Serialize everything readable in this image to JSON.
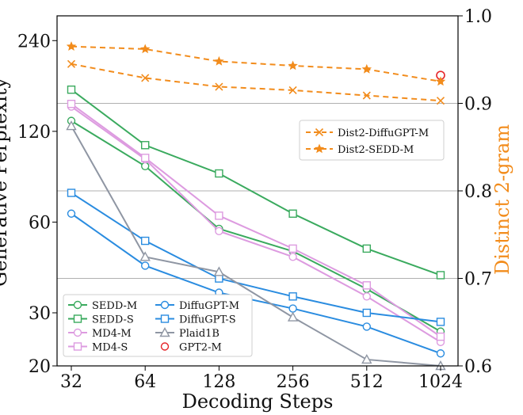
{
  "chart_data": {
    "type": "line",
    "x": [
      32,
      64,
      128,
      256,
      512,
      1024
    ],
    "xlabel": "Decoding Steps",
    "x_tick_labels": [
      "32",
      "64",
      "128",
      "256",
      "512",
      "1024"
    ],
    "x_scale": "log2",
    "left_axis": {
      "label": "Generative Perplexity",
      "scale": "log",
      "ylim": [
        20,
        290
      ],
      "ticks": [
        20,
        30,
        60,
        120,
        240
      ],
      "tick_labels": [
        "20",
        "30",
        "60",
        "120",
        "240"
      ]
    },
    "right_axis": {
      "label": "Distinct 2-gram",
      "scale": "linear",
      "ylim": [
        0.6,
        1.0
      ],
      "ticks": [
        0.6,
        0.7,
        0.8,
        0.9,
        1.0
      ],
      "tick_labels": [
        "0.6",
        "0.7",
        "0.8",
        "0.9",
        "1.0"
      ]
    },
    "horizontal_gridlines_right_axis": [
      0.7,
      0.8,
      0.9
    ],
    "series": [
      {
        "name": "SEDD-M",
        "axis": "left",
        "color": "#3aaa5e",
        "marker": "circle",
        "line": "solid",
        "values": [
          130,
          92,
          57,
          48,
          36,
          26
        ]
      },
      {
        "name": "SEDD-S",
        "axis": "left",
        "color": "#3aaa5e",
        "marker": "square",
        "line": "solid",
        "values": [
          165,
          108,
          87,
          64,
          49,
          40
        ]
      },
      {
        "name": "MD4-M",
        "axis": "left",
        "color": "#dd9be0",
        "marker": "circle",
        "line": "solid",
        "values": [
          145,
          97,
          56,
          46,
          34,
          24
        ]
      },
      {
        "name": "MD4-S",
        "axis": "left",
        "color": "#dd9be0",
        "marker": "square",
        "line": "solid",
        "values": [
          148,
          98,
          63,
          49,
          37,
          25
        ]
      },
      {
        "name": "DiffuGPT-M",
        "axis": "left",
        "color": "#2a8ce0",
        "marker": "circle",
        "line": "solid",
        "values": [
          64,
          43,
          35,
          31,
          27,
          22
        ]
      },
      {
        "name": "DiffuGPT-S",
        "axis": "left",
        "color": "#2a8ce0",
        "marker": "square",
        "line": "solid",
        "values": [
          75,
          52,
          39,
          34,
          30,
          28
        ]
      },
      {
        "name": "Plaid1B",
        "axis": "left",
        "color": "#8f96a3",
        "marker": "triangle",
        "line": "solid",
        "values": [
          125,
          46,
          41,
          29,
          21,
          20
        ]
      },
      {
        "name": "GPT2-M",
        "axis": "right",
        "color": "#e6262a",
        "marker": "circle-open",
        "line": "none",
        "x": [
          1024
        ],
        "values": [
          0.932
        ]
      },
      {
        "name": "Dist2-DiffuGPT-M",
        "axis": "right",
        "color": "#f28c1c",
        "marker": "x",
        "line": "dashed",
        "values": [
          0.945,
          0.929,
          0.919,
          0.915,
          0.909,
          0.903
        ]
      },
      {
        "name": "Dist2-SEDD-M",
        "axis": "right",
        "color": "#f28c1c",
        "marker": "star",
        "line": "dashed",
        "values": [
          0.965,
          0.962,
          0.948,
          0.943,
          0.939,
          0.925
        ]
      }
    ],
    "legends": [
      {
        "position": "upper-right",
        "entries": [
          "Dist2-DiffuGPT-M",
          "Dist2-SEDD-M"
        ]
      },
      {
        "position": "lower-left",
        "columns": 2,
        "entries": [
          "SEDD-M",
          "DiffuGPT-M",
          "SEDD-S",
          "DiffuGPT-S",
          "MD4-M",
          "Plaid1B",
          "MD4-S",
          "GPT2-M"
        ]
      }
    ]
  }
}
